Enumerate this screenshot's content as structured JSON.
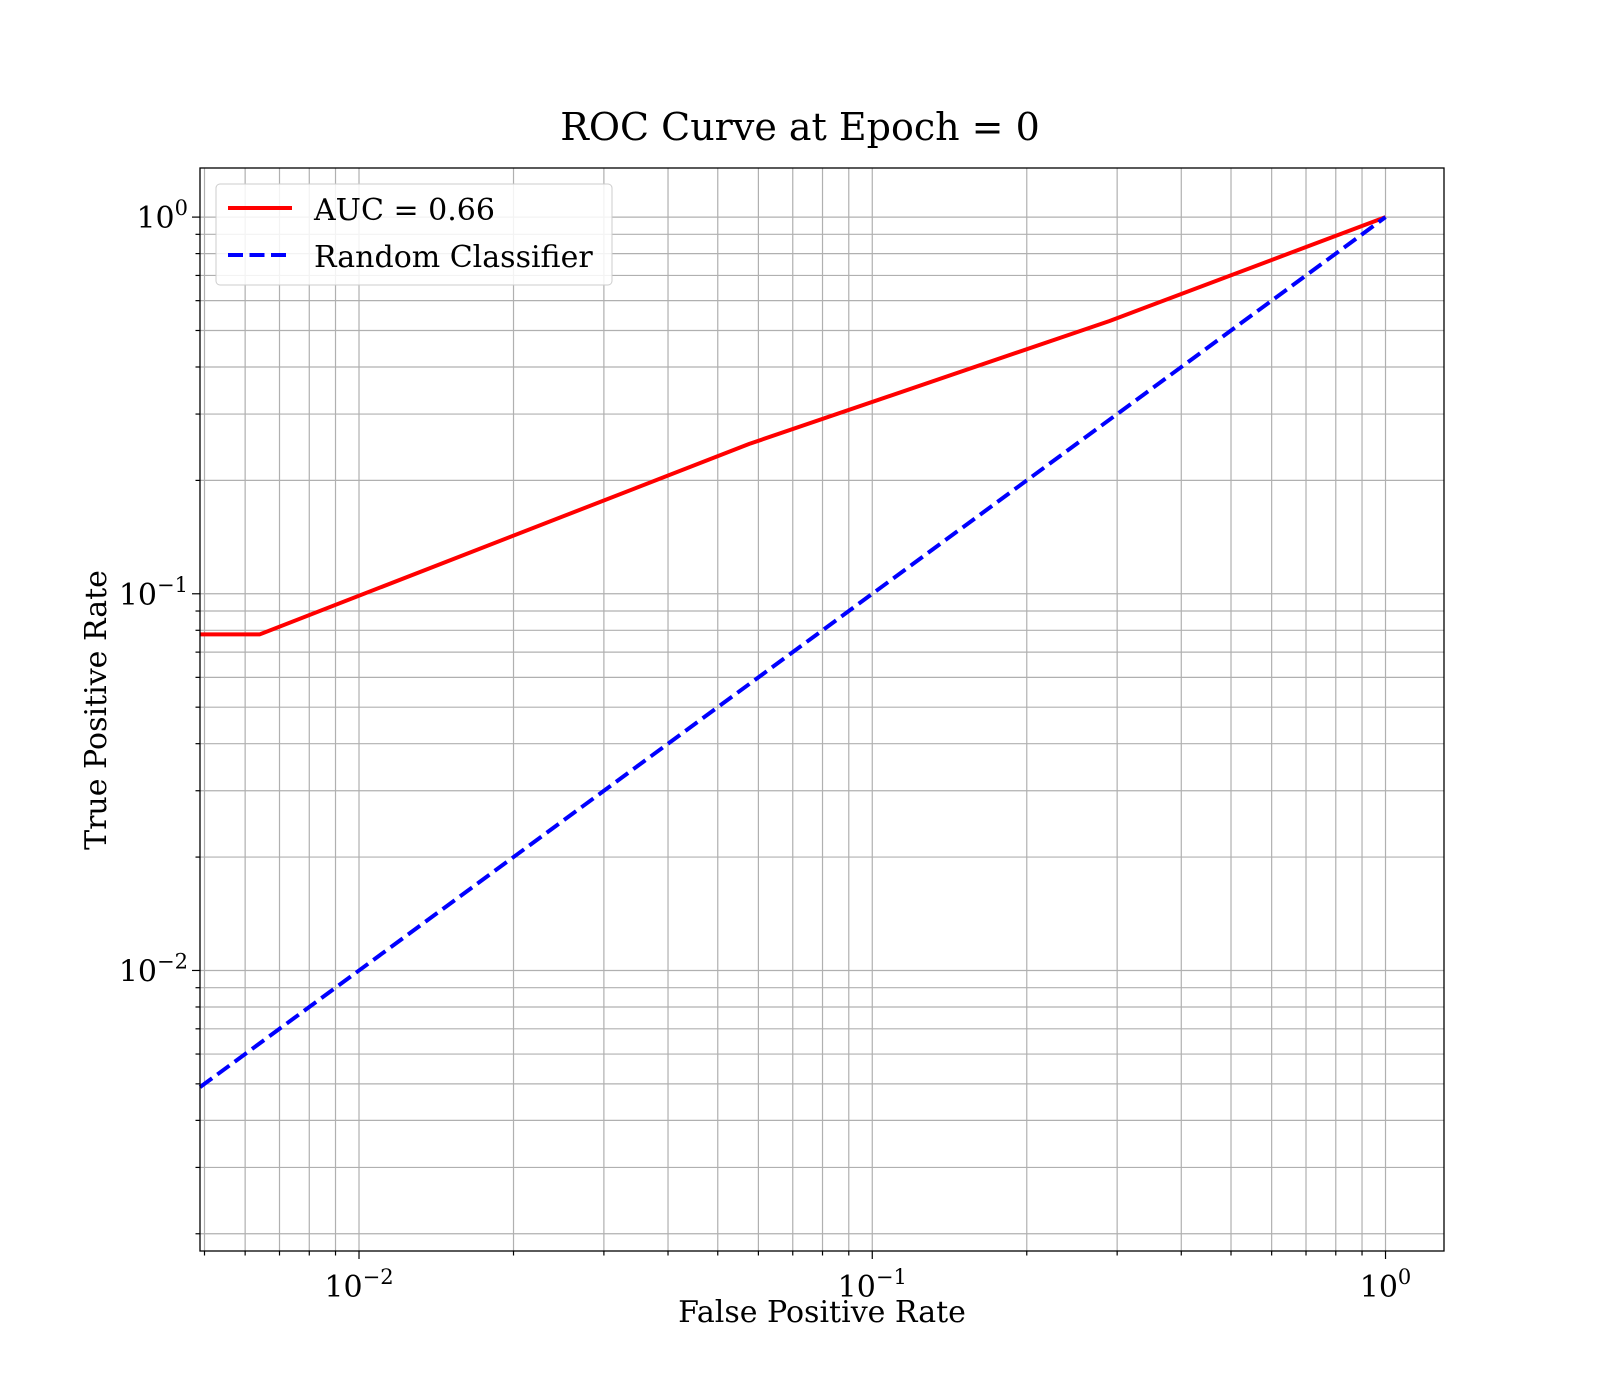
{
  "chart_data": {
    "type": "line",
    "title": "ROC Curve at Epoch = 0",
    "xlabel": "False Positive Rate",
    "ylabel": "True Positive Rate",
    "xscale": "log",
    "yscale": "log",
    "xlim": [
      0.0049,
      1.3
    ],
    "ylim": [
      0.0018,
      1.35
    ],
    "grid": true,
    "grid_which": "both",
    "legend_position": "upper-left",
    "x_ticks": [
      {
        "value": 0.01,
        "base": "10",
        "exp": "−2"
      },
      {
        "value": 0.1,
        "base": "10",
        "exp": "−1"
      },
      {
        "value": 1,
        "base": "10",
        "exp": "0"
      }
    ],
    "y_ticks": [
      {
        "value": 0.01,
        "base": "10",
        "exp": "−2"
      },
      {
        "value": 0.1,
        "base": "10",
        "exp": "−1"
      },
      {
        "value": 1,
        "base": "10",
        "exp": "0"
      }
    ],
    "series": [
      {
        "name": "AUC = 0.66",
        "color": "#ff0000",
        "style": "solid",
        "x": [
          0.0049,
          0.0064,
          0.0576,
          0.29,
          1.0
        ],
        "y": [
          0.078,
          0.078,
          0.25,
          0.53,
          1.0
        ]
      },
      {
        "name": "Random Classifier",
        "color": "#0000ff",
        "style": "dashed",
        "x": [
          0.0049,
          1.0
        ],
        "y": [
          0.0049,
          1.0
        ]
      }
    ]
  }
}
